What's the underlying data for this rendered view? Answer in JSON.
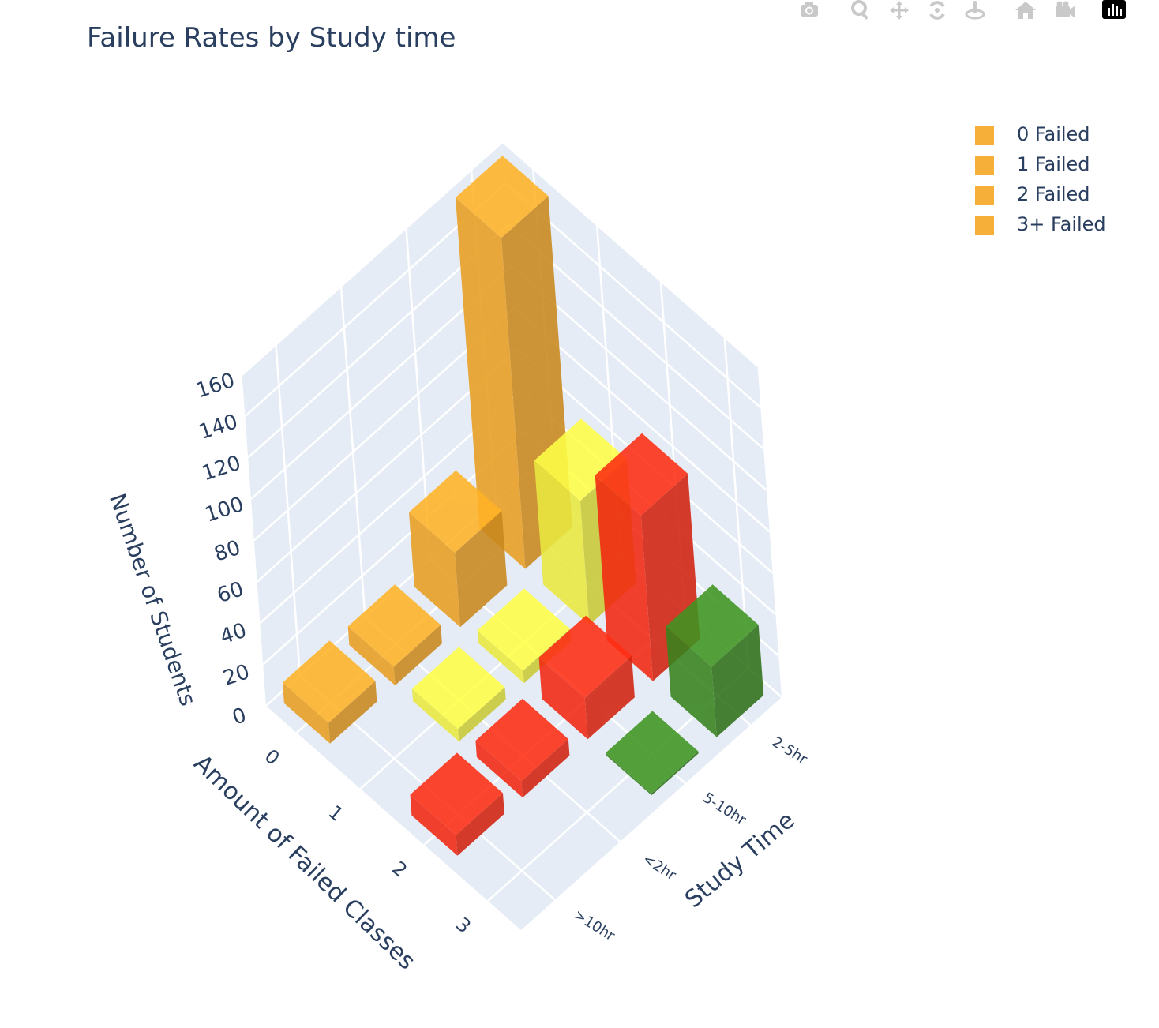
{
  "title": "Failure Rates by Study time",
  "modebar": {
    "icons": [
      "camera-icon",
      "zoom-icon",
      "pan-icon",
      "orbit-rotation-icon",
      "turntable-rotation-icon",
      "reset-camera-icon",
      "save-camera-icon",
      "plotly-logo-icon"
    ]
  },
  "legend": {
    "items": [
      {
        "label": "0 Failed",
        "color": "#f5a623"
      },
      {
        "label": "1 Failed",
        "color": "#f5a623"
      },
      {
        "label": "2 Failed",
        "color": "#f5a623"
      },
      {
        "label": "3+ Failed",
        "color": "#f5a623"
      }
    ]
  },
  "chart_data": {
    "type": "bar",
    "subtype": "3d-bar",
    "title": "Failure Rates by Study time",
    "x_axis": {
      "label": "Amount of Failed Classes",
      "ticks": [
        "0",
        "1",
        "2",
        "3"
      ]
    },
    "y_axis": {
      "label": "Study Time",
      "ticks": [
        "2-5hr",
        "5-10hr",
        "<2hr",
        ">10hr"
      ]
    },
    "z_axis": {
      "label": "Number of Students",
      "ticks": [
        0,
        20,
        40,
        60,
        80,
        100,
        120,
        140,
        160
      ],
      "range": [
        0,
        160
      ]
    },
    "background": "#e5ecf6",
    "gridlines": true,
    "legend_position": "top-right",
    "bars": [
      {
        "failed": "0",
        "study_time": "2-5hr",
        "value": 160,
        "color": "#f5a623"
      },
      {
        "failed": "0",
        "study_time": "5-10hr",
        "value": 36,
        "color": "#f5a623"
      },
      {
        "failed": "0",
        "study_time": "<2hr",
        "value": 9,
        "color": "#f5a623"
      },
      {
        "failed": "0",
        "study_time": ">10hr",
        "value": 10,
        "color": "#f5a623"
      },
      {
        "failed": "1",
        "study_time": "2-5hr",
        "value": 60,
        "color": "#f5f542"
      },
      {
        "failed": "1",
        "study_time": "5-10hr",
        "value": 6,
        "color": "#f5f542"
      },
      {
        "failed": "1",
        "study_time": "<2hr",
        "value": 6,
        "color": "#f5f542"
      },
      {
        "failed": "1",
        "study_time": ">10hr",
        "value": 0,
        "color": "#f5f542"
      },
      {
        "failed": "2",
        "study_time": "2-5hr",
        "value": 80,
        "color": "#ff2a12"
      },
      {
        "failed": "2",
        "study_time": "5-10hr",
        "value": 20,
        "color": "#ff2a12"
      },
      {
        "failed": "2",
        "study_time": "<2hr",
        "value": 8,
        "color": "#ff2a12"
      },
      {
        "failed": "2",
        "study_time": ">10hr",
        "value": 10,
        "color": "#ff2a12"
      },
      {
        "failed": "3",
        "study_time": "2-5hr",
        "value": 34,
        "color": "#3a8a1f"
      },
      {
        "failed": "3",
        "study_time": "5-10hr",
        "value": 1,
        "color": "#3a8a1f"
      },
      {
        "failed": "3",
        "study_time": "<2hr",
        "value": 0,
        "color": "#3a8a1f"
      },
      {
        "failed": "3",
        "study_time": ">10hr",
        "value": 0,
        "color": "#3a8a1f"
      }
    ]
  }
}
